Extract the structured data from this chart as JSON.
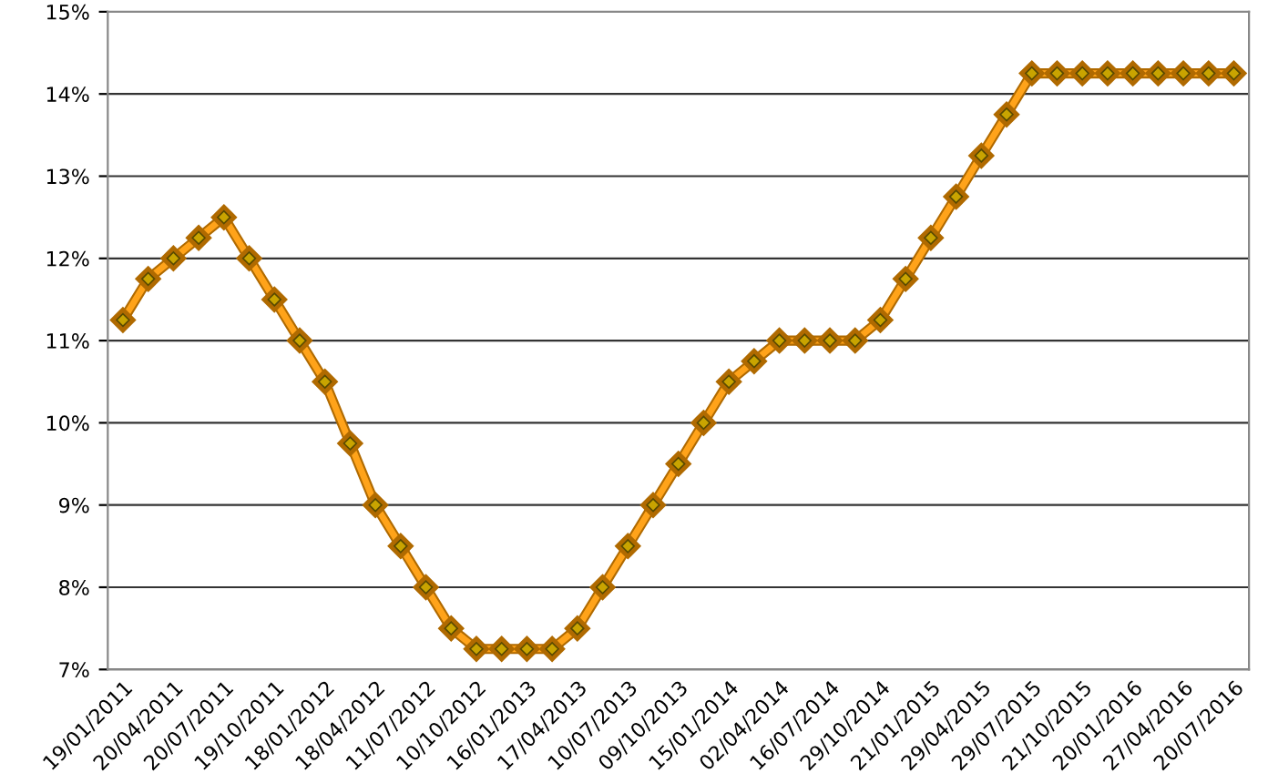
{
  "chart_data": {
    "type": "line",
    "categories": [
      "19/01/2011",
      null,
      "20/04/2011",
      null,
      "20/07/2011",
      null,
      "19/10/2011",
      null,
      "18/01/2012",
      null,
      "18/04/2012",
      null,
      "11/07/2012",
      null,
      "10/10/2012",
      null,
      "16/01/2013",
      null,
      "17/04/2013",
      null,
      "10/07/2013",
      null,
      "09/10/2013",
      null,
      "15/01/2014",
      null,
      "02/04/2014",
      null,
      "16/07/2014",
      null,
      "29/10/2014",
      null,
      "21/01/2015",
      null,
      "29/04/2015",
      null,
      "29/07/2015",
      null,
      "21/10/2015",
      null,
      "20/01/2016",
      null,
      "27/04/2016",
      null,
      "20/07/2016"
    ],
    "series": [
      {
        "color": "#ffa31a",
        "values": [
          11.25,
          11.75,
          12.0,
          12.25,
          12.5,
          12.0,
          11.5,
          11.0,
          10.5,
          9.75,
          9.0,
          8.5,
          8.0,
          7.5,
          7.25,
          7.25,
          7.25,
          7.25,
          7.5,
          8.0,
          8.5,
          9.0,
          9.5,
          10.0,
          10.5,
          10.75,
          11.0,
          11.0,
          11.0,
          11.0,
          11.25,
          11.75,
          12.25,
          12.75,
          13.25,
          13.75,
          14.25,
          14.25,
          14.25,
          14.25,
          14.25,
          14.25,
          14.25,
          14.25,
          14.25
        ]
      }
    ],
    "ylim": [
      7,
      15
    ],
    "yticks": [
      {
        "value": 7,
        "label": "7%"
      },
      {
        "value": 8,
        "label": "8%"
      },
      {
        "value": 9,
        "label": "9%"
      },
      {
        "value": 10,
        "label": "10%"
      },
      {
        "value": 11,
        "label": "11%"
      },
      {
        "value": 12,
        "label": "12%"
      },
      {
        "value": 13,
        "label": "13%"
      },
      {
        "value": 14,
        "label": "14%"
      },
      {
        "value": 15,
        "label": "15%"
      }
    ],
    "grid": "y",
    "marker": "diamond",
    "line_style": "solid"
  }
}
